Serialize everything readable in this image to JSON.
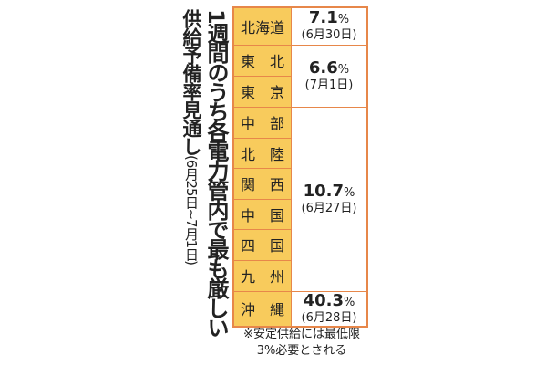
{
  "title": {
    "line1": "1週間のうち各電力管内で最も厳しい",
    "line2": "供給予備率見通し",
    "period": "(6月25日~7月1日)"
  },
  "colors": {
    "region_bg": "#f8cb5c",
    "border": "#e7874a"
  },
  "rows": [
    {
      "regions": [
        "北海道"
      ],
      "value": "7.1",
      "unit": "%",
      "date": "(6月30日)"
    },
    {
      "regions": [
        "東　北",
        "東　京"
      ],
      "value": "6.6",
      "unit": "%",
      "date": "(7月1日)"
    },
    {
      "regions": [
        "中　部",
        "北　陸",
        "関　西",
        "中　国",
        "四　国",
        "九　州"
      ],
      "value": "10.7",
      "unit": "%",
      "date": "(6月27日)"
    },
    {
      "regions": [
        "沖　縄"
      ],
      "value": "40.3",
      "unit": "%",
      "date": "(6月28日)"
    }
  ],
  "footnote": {
    "line1": "※安定供給には最低限",
    "line2": "3%必要とされる"
  }
}
